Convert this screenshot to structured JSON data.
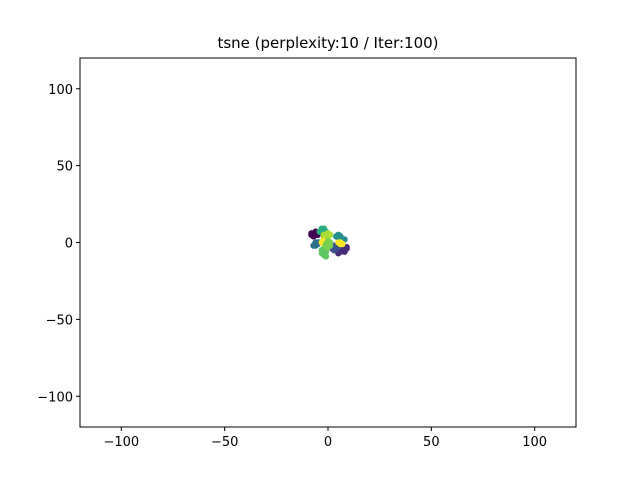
{
  "chart_data": {
    "type": "scatter",
    "title": "tsne (perplexity:10 / Iter:100)",
    "xlabel": "",
    "ylabel": "",
    "xlim": [
      -120,
      120
    ],
    "ylim": [
      -120,
      120
    ],
    "x_ticks": [
      -100,
      -50,
      0,
      50,
      100
    ],
    "y_ticks": [
      -100,
      -50,
      0,
      50,
      100
    ],
    "x_tick_labels": [
      "−100",
      "−50",
      "0",
      "50",
      "100"
    ],
    "y_tick_labels": [
      "−100",
      "−50",
      "0",
      "50",
      "100"
    ],
    "grid": false,
    "colors": [
      "#440154",
      "#472c7a",
      "#3b518b",
      "#2c718e",
      "#21908d",
      "#27ad81",
      "#5cc863",
      "#aadc32",
      "#fde725",
      "#7ad151"
    ],
    "series": [
      {
        "color_index": 0,
        "points": [
          [
            -8,
            6
          ],
          [
            -7,
            5
          ],
          [
            -6,
            6
          ],
          [
            -5,
            5
          ],
          [
            -8,
            5
          ],
          [
            -6,
            7
          ],
          [
            -7,
            4
          ]
        ]
      },
      {
        "color_index": 1,
        "points": [
          [
            6,
            -6
          ],
          [
            8,
            -4
          ],
          [
            9,
            -3
          ],
          [
            7,
            -5
          ],
          [
            5,
            -7
          ],
          [
            8,
            -6
          ],
          [
            9,
            -4
          ]
        ]
      },
      {
        "color_index": 2,
        "points": [
          [
            3,
            -2
          ],
          [
            2,
            -3
          ],
          [
            4,
            -4
          ],
          [
            3,
            -5
          ],
          [
            4,
            -3
          ],
          [
            2,
            -4
          ],
          [
            5,
            -3
          ]
        ]
      },
      {
        "color_index": 3,
        "points": [
          [
            -6,
            -1
          ],
          [
            -5,
            0
          ],
          [
            -7,
            -2
          ],
          [
            -6,
            -2
          ],
          [
            -5,
            -1
          ],
          [
            -4,
            0
          ],
          [
            -6,
            0
          ]
        ]
      },
      {
        "color_index": 4,
        "points": [
          [
            5,
            3
          ],
          [
            6,
            2
          ],
          [
            7,
            2
          ],
          [
            6,
            4
          ],
          [
            5,
            5
          ],
          [
            4,
            4
          ],
          [
            8,
            2
          ]
        ]
      },
      {
        "color_index": 5,
        "points": [
          [
            -3,
            8
          ],
          [
            -2,
            9
          ],
          [
            -4,
            7
          ],
          [
            -3,
            9
          ],
          [
            -2,
            8
          ],
          [
            -1,
            7
          ],
          [
            -3,
            7
          ]
        ]
      },
      {
        "color_index": 6,
        "points": [
          [
            -2,
            -8
          ],
          [
            -1,
            -6
          ],
          [
            -2,
            -4
          ],
          [
            -3,
            -7
          ],
          [
            -1,
            -9
          ],
          [
            -2,
            -6
          ],
          [
            -3,
            -5
          ]
        ]
      },
      {
        "color_index": 7,
        "points": [
          [
            -1,
            5
          ],
          [
            0,
            4
          ],
          [
            -2,
            3
          ],
          [
            -1,
            2
          ],
          [
            0,
            6
          ],
          [
            1,
            5
          ],
          [
            -2,
            5
          ]
        ]
      },
      {
        "color_index": 8,
        "points": [
          [
            -2,
            1
          ],
          [
            -1,
            0
          ],
          [
            6,
            -1
          ],
          [
            5,
            0
          ],
          [
            7,
            -1
          ],
          [
            -3,
            0
          ],
          [
            6,
            0
          ]
        ]
      },
      {
        "color_index": 9,
        "points": [
          [
            0,
            -1
          ],
          [
            -1,
            -2
          ],
          [
            1,
            0
          ],
          [
            0,
            -3
          ],
          [
            1,
            -2
          ],
          [
            -1,
            -1
          ],
          [
            0,
            1
          ]
        ]
      }
    ]
  }
}
